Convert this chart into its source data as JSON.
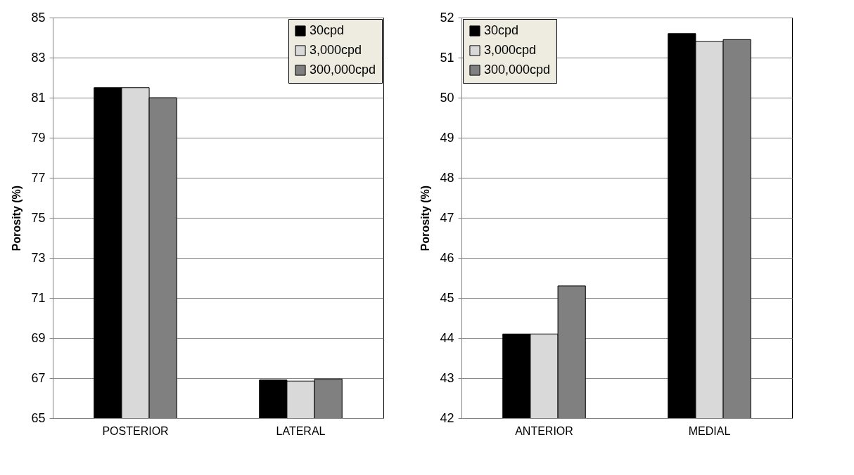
{
  "chart_data": [
    {
      "type": "bar",
      "ylabel": "Porosity (%)",
      "categories": [
        "POSTERIOR",
        "LATERAL"
      ],
      "ylim": [
        65,
        85
      ],
      "yticks": [
        65,
        67,
        69,
        71,
        73,
        75,
        77,
        79,
        81,
        83,
        85
      ],
      "grid": "y",
      "legend": "top right",
      "series": [
        {
          "name": "30cpd",
          "color": "#000000",
          "values": [
            81.5,
            66.9
          ]
        },
        {
          "name": "3,000cpd",
          "color": "#d9d9d9",
          "values": [
            81.5,
            66.85
          ]
        },
        {
          "name": "300,000cpd",
          "color": "#808080",
          "values": [
            81.0,
            66.95
          ]
        }
      ]
    },
    {
      "type": "bar",
      "ylabel": "Porosity (%)",
      "categories": [
        "ANTERIOR",
        "MEDIAL"
      ],
      "ylim": [
        42,
        52
      ],
      "yticks": [
        42,
        43,
        44,
        45,
        46,
        47,
        48,
        49,
        50,
        51,
        52
      ],
      "grid": "y",
      "legend": "top left",
      "series": [
        {
          "name": "30cpd",
          "color": "#000000",
          "values": [
            44.1,
            51.6
          ]
        },
        {
          "name": "3,000cpd",
          "color": "#d9d9d9",
          "values": [
            44.1,
            51.4
          ]
        },
        {
          "name": "300,000cpd",
          "color": "#808080",
          "values": [
            45.3,
            51.45
          ]
        }
      ]
    }
  ]
}
